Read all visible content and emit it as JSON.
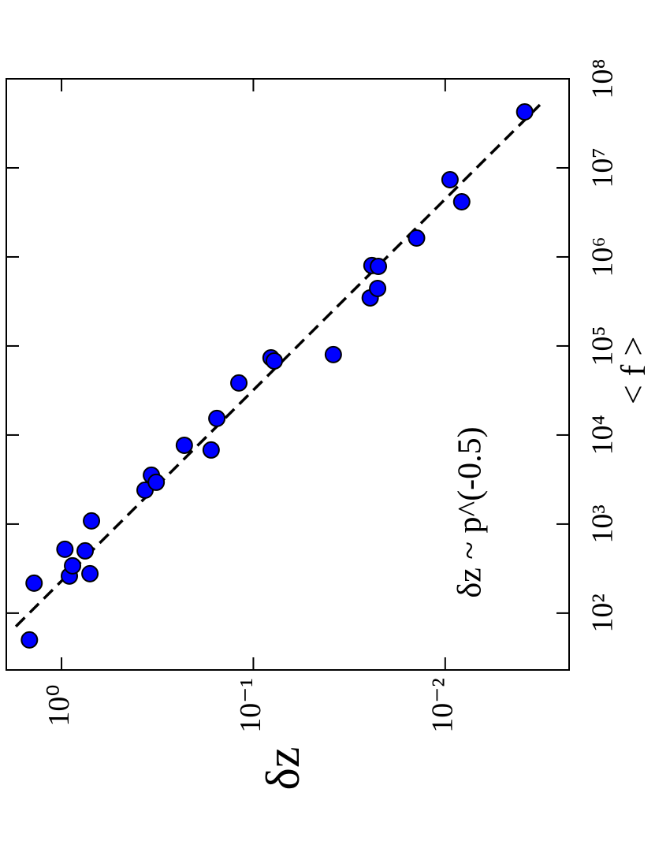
{
  "chart_data": {
    "type": "scatter",
    "x_label": "< f >",
    "y_label": "δz",
    "annotation": "δz ~ p^(-0.5)",
    "x": [
      50,
      217,
      521,
      261,
      340,
      500,
      277,
      1085,
      2404,
      3537,
      2944,
      7670,
      6790,
      15350,
      38400,
      73600,
      67900,
      80000,
      346700,
      800000,
      783000,
      442600,
      1630000,
      7360000,
      4160000,
      42500000
    ],
    "values": [
      1.47,
      1.39,
      0.96,
      0.91,
      0.876,
      0.753,
      0.711,
      0.698,
      0.367,
      0.34,
      0.321,
      0.229,
      0.166,
      0.155,
      0.119,
      0.0809,
      0.0778,
      0.0383,
      0.0246,
      0.0241,
      0.0223,
      0.0225,
      0.0141,
      0.00944,
      0.0082,
      0.00385
    ],
    "color": "#0000ff",
    "fit": {
      "x": [
        70.8,
        51000000
      ],
      "values": [
        1.73,
        0.00321
      ],
      "color": "#000000",
      "dash": true
    },
    "xlim": [
      23,
      100000000
    ],
    "ylim": [
      0.00226,
      1.94
    ],
    "x_log": true,
    "y_log": true,
    "xticks": [
      {
        "value": 100,
        "label": "10²"
      },
      {
        "value": 1000,
        "label": "10³"
      },
      {
        "value": 10000,
        "label": "10⁴"
      },
      {
        "value": 100000,
        "label": "10⁵"
      },
      {
        "value": 1000000,
        "label": "10⁶"
      },
      {
        "value": 10000000,
        "label": "10⁷"
      },
      {
        "value": 100000000,
        "label": "10⁸"
      }
    ],
    "yticks": [
      {
        "value": 1,
        "label": "10⁰"
      },
      {
        "value": 0.1,
        "label": "10⁻¹"
      },
      {
        "value": 0.01,
        "label": "10⁻²"
      }
    ]
  }
}
